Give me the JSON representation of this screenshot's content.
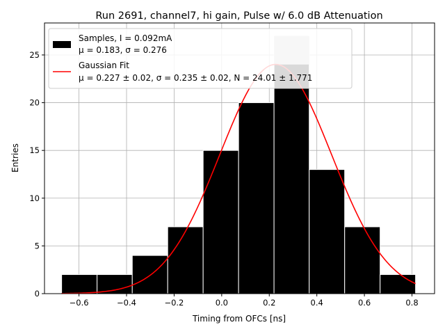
{
  "chart_data": {
    "type": "bar",
    "title": "Run 2691, channel7, hi gain, Pulse w/ 6.0 dB Attenuation",
    "xlabel": "Timing from OFCs [ns]",
    "ylabel": "Entries",
    "xlim": [
      -0.745,
      0.895
    ],
    "ylim": [
      0,
      28.35
    ],
    "grid": true,
    "legend_position": "top-left",
    "x_ticks": [
      -0.6,
      -0.4,
      -0.2,
      0.0,
      0.2,
      0.4,
      0.6,
      0.8
    ],
    "x_tick_labels": [
      "−0.6",
      "−0.4",
      "−0.2",
      "0.0",
      "0.2",
      "0.4",
      "0.6",
      "0.8"
    ],
    "y_ticks": [
      0,
      5,
      10,
      15,
      20,
      25
    ],
    "y_tick_labels": [
      "0",
      "5",
      "10",
      "15",
      "20",
      "25"
    ],
    "bins": [
      {
        "x0": -0.673,
        "x1": -0.524,
        "value": 2
      },
      {
        "x0": -0.524,
        "x1": -0.376,
        "value": 2
      },
      {
        "x0": -0.376,
        "x1": -0.227,
        "value": 4
      },
      {
        "x0": -0.227,
        "x1": -0.078,
        "value": 7
      },
      {
        "x0": -0.078,
        "x1": 0.071,
        "value": 15
      },
      {
        "x0": 0.071,
        "x1": 0.22,
        "value": 20
      },
      {
        "x0": 0.22,
        "x1": 0.368,
        "value": 27
      },
      {
        "x0": 0.368,
        "x1": 0.517,
        "value": 13
      },
      {
        "x0": 0.517,
        "x1": 0.666,
        "value": 7
      },
      {
        "x0": 0.666,
        "x1": 0.815,
        "value": 2
      }
    ],
    "overlay_bin": {
      "x0": 0.22,
      "x1": 0.368,
      "from": 24,
      "to": 27,
      "color": "#c8c8c8"
    },
    "fit": {
      "mu": 0.227,
      "sigma": 0.235,
      "N": 24.01,
      "x_range": [
        -0.673,
        0.815
      ]
    },
    "series": [
      {
        "name": "Samples, I = 0.092mA",
        "color": "#000000"
      },
      {
        "name": "Gaussian Fit",
        "color": "#ff0000"
      }
    ],
    "legend": [
      {
        "line1": "Samples, I = 0.092mA",
        "line2": "μ = 0.183, σ = 0.276"
      },
      {
        "line1": "Gaussian Fit",
        "line2": "μ = 0.227 ± 0.02, σ = 0.235 ± 0.02, N = 24.01 ± 1.771"
      }
    ]
  }
}
